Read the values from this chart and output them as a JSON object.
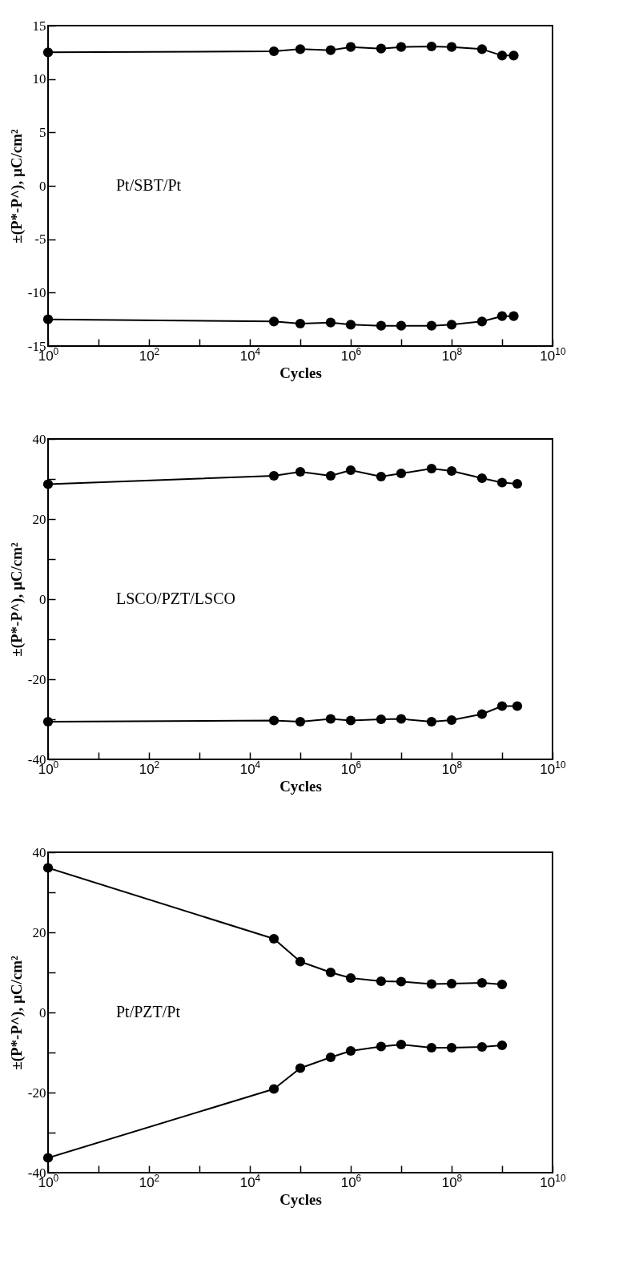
{
  "chart_data": [
    {
      "type": "line",
      "xlabel": "Cycles",
      "ylabel": "±(P*-P^),  µC/cm²",
      "log": "x",
      "grid": false,
      "legend": false,
      "marker": "circle",
      "line_style": "solid",
      "annotations": [
        "Pt/SBT/Pt"
      ],
      "xlim": [
        1,
        10000000000
      ],
      "ylim": [
        -15,
        15
      ],
      "xticks": [
        {
          "value": 1,
          "label": "10$^{0}$"
        },
        {
          "value": 10,
          "label": null
        },
        {
          "value": 100,
          "label": "10$^{2}$"
        },
        {
          "value": 1000,
          "label": null
        },
        {
          "value": 10000,
          "label": "10$^{4}$"
        },
        {
          "value": 100000,
          "label": null
        },
        {
          "value": 1000000,
          "label": "10$^{6}$"
        },
        {
          "value": 10000000,
          "label": null
        },
        {
          "value": 100000000,
          "label": "10$^{8}$"
        },
        {
          "value": 1000000000,
          "label": null
        },
        {
          "value": 10000000000,
          "label": "10$^{10}$"
        }
      ],
      "yticks": [
        -15,
        -10,
        -5,
        0,
        5,
        10,
        15
      ],
      "x": [
        1,
        30000,
        100000,
        400000,
        1000000,
        4000000,
        10000000,
        40000000,
        100000000,
        400000000,
        1000000000,
        1700000000
      ],
      "series": [
        {
          "color": "#000000",
          "values": [
            12.5,
            12.6,
            12.8,
            12.7,
            13.0,
            12.85,
            13.0,
            13.05,
            13.0,
            12.8,
            12.2,
            12.2
          ]
        },
        {
          "color": "#000000",
          "values": [
            -12.5,
            -12.7,
            -12.9,
            -12.8,
            -13.0,
            -13.1,
            -13.1,
            -13.1,
            -13.0,
            -12.7,
            -12.2,
            -12.2
          ]
        }
      ]
    },
    {
      "type": "line",
      "xlabel": "Cycles",
      "ylabel": "±(P*-P^),  µC/cm²",
      "log": "x",
      "grid": false,
      "legend": false,
      "marker": "circle",
      "line_style": "solid",
      "annotations": [
        "LSCO/PZT/LSCO"
      ],
      "xlim": [
        1,
        10000000000
      ],
      "ylim": [
        -40,
        40
      ],
      "xticks": [
        {
          "value": 1,
          "label": "10$^{0}$"
        },
        {
          "value": 10,
          "label": null
        },
        {
          "value": 100,
          "label": "10$^{2}$"
        },
        {
          "value": 1000,
          "label": null
        },
        {
          "value": 10000,
          "label": "10$^{4}$"
        },
        {
          "value": 100000,
          "label": null
        },
        {
          "value": 1000000,
          "label": "10$^{6}$"
        },
        {
          "value": 10000000,
          "label": null
        },
        {
          "value": 100000000,
          "label": "10$^{8}$"
        },
        {
          "value": 1000000000,
          "label": null
        },
        {
          "value": 10000000000,
          "label": "10$^{10}$"
        }
      ],
      "yticks": [
        -40,
        {
          "value": -30,
          "label": null
        },
        -20,
        {
          "value": -10,
          "label": null
        },
        0,
        {
          "value": 10,
          "label": null
        },
        20,
        {
          "value": 30,
          "label": null
        },
        40
      ],
      "x": [
        1,
        30000,
        100000,
        400000,
        1000000,
        4000000,
        10000000,
        40000000,
        100000000,
        400000000,
        1000000000,
        2000000000
      ],
      "series": [
        {
          "color": "#000000",
          "values": [
            28.7,
            30.8,
            31.8,
            30.8,
            32.2,
            30.6,
            31.4,
            32.6,
            32.0,
            30.2,
            29.1,
            28.8
          ]
        },
        {
          "color": "#000000",
          "values": [
            -30.6,
            -30.3,
            -30.6,
            -29.9,
            -30.3,
            -30.0,
            -29.9,
            -30.6,
            -30.2,
            -28.7,
            -26.7,
            -26.7
          ]
        }
      ]
    },
    {
      "type": "line",
      "xlabel": "Cycles",
      "ylabel": "±(P*-P^),  µC/cm²",
      "log": "x",
      "grid": false,
      "legend": false,
      "marker": "circle",
      "line_style": "solid",
      "annotations": [
        "Pt/PZT/Pt"
      ],
      "xlim": [
        1,
        10000000000
      ],
      "ylim": [
        -40,
        40
      ],
      "xticks": [
        {
          "value": 1,
          "label": "10$^{0}$"
        },
        {
          "value": 10,
          "label": null
        },
        {
          "value": 100,
          "label": "10$^{2}$"
        },
        {
          "value": 1000,
          "label": null
        },
        {
          "value": 10000,
          "label": "10$^{4}$"
        },
        {
          "value": 100000,
          "label": null
        },
        {
          "value": 1000000,
          "label": "10$^{6}$"
        },
        {
          "value": 10000000,
          "label": null
        },
        {
          "value": 100000000,
          "label": "10$^{8}$"
        },
        {
          "value": 1000000000,
          "label": null
        },
        {
          "value": 10000000000,
          "label": "10$^{10}$"
        }
      ],
      "yticks": [
        -40,
        {
          "value": -30,
          "label": null
        },
        -20,
        {
          "value": -10,
          "label": null
        },
        0,
        {
          "value": 10,
          "label": null
        },
        20,
        {
          "value": 30,
          "label": null
        },
        40
      ],
      "x": [
        1,
        30000,
        100000,
        400000,
        1000000,
        4000000,
        10000000,
        40000000,
        100000000,
        400000000,
        1000000000
      ],
      "series": [
        {
          "color": "#000000",
          "values": [
            36.1,
            18.4,
            12.7,
            10.0,
            8.6,
            7.8,
            7.7,
            7.1,
            7.2,
            7.4,
            7.0
          ]
        },
        {
          "color": "#000000",
          "values": [
            -36.3,
            -19.1,
            -13.9,
            -11.2,
            -9.6,
            -8.5,
            -8.0,
            -8.8,
            -8.8,
            -8.6,
            -8.2
          ]
        }
      ]
    }
  ]
}
